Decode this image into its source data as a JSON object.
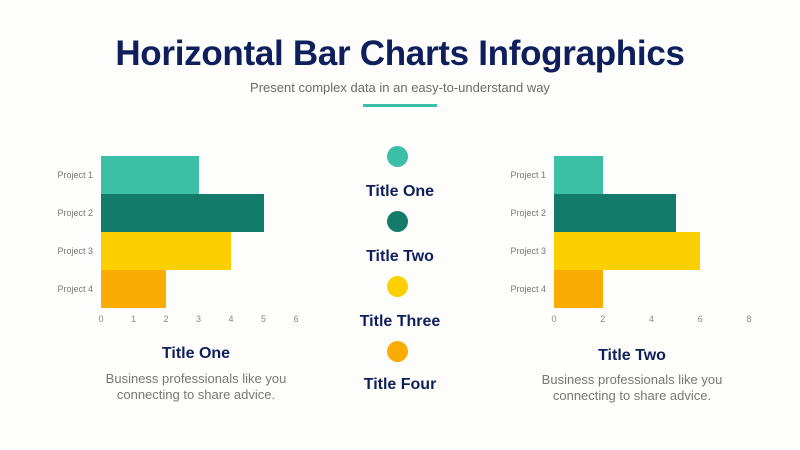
{
  "header": {
    "title": "Horizontal Bar Charts Infographics",
    "subtitle": "Present complex data in an easy-to-understand way"
  },
  "colors": {
    "teal_light": "#3cbfa7",
    "teal_dark": "#137b69",
    "yellow": "#fcd000",
    "orange": "#fbac04",
    "navy": "#0f1f5c"
  },
  "legend": [
    {
      "label": "Title One",
      "color": "#3cbfa7"
    },
    {
      "label": "Title Two",
      "color": "#137b69"
    },
    {
      "label": "Title Three",
      "color": "#fcd000"
    },
    {
      "label": "Title Four",
      "color": "#fbac04"
    }
  ],
  "captions": {
    "left": {
      "title": "Title One",
      "line1": "Business professionals like you",
      "line2": "connecting to share advice."
    },
    "right": {
      "title": "Title Two",
      "line1": "Business professionals like you",
      "line2": "connecting to share advice."
    }
  },
  "chart_data": [
    {
      "type": "bar",
      "orientation": "horizontal",
      "title": "Title One",
      "categories": [
        "Project 1",
        "Project 2",
        "Project 3",
        "Project 4"
      ],
      "values": [
        3,
        5,
        4,
        2
      ],
      "colors": [
        "#3cbfa7",
        "#137b69",
        "#fcd000",
        "#fbac04"
      ],
      "xticks": [
        "0",
        "1",
        "2",
        "3",
        "4",
        "5",
        "6"
      ],
      "xlim": [
        0,
        6
      ],
      "grid": false,
      "legend": false
    },
    {
      "type": "bar",
      "orientation": "horizontal",
      "title": "Title Two",
      "categories": [
        "Project 1",
        "Project 2",
        "Project 3",
        "Project 4"
      ],
      "values": [
        2,
        5,
        6,
        2
      ],
      "colors": [
        "#3cbfa7",
        "#137b69",
        "#fcd000",
        "#fbac04"
      ],
      "xticks": [
        "0",
        "2",
        "4",
        "6",
        "8"
      ],
      "xlim": [
        0,
        8
      ],
      "grid": false,
      "legend": false
    }
  ]
}
